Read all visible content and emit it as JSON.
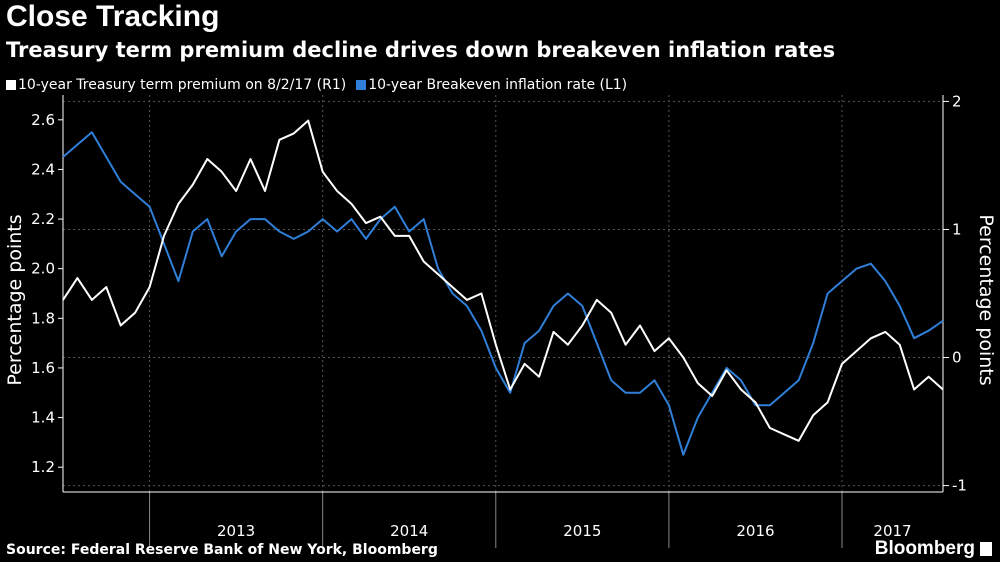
{
  "title": "Close Tracking",
  "subtitle": "Treasury term premium decline drives down breakeven inflation rates",
  "source": "Source: Federal Reserve Bank of New York, Bloomberg",
  "brand": "Bloomberg",
  "colors": {
    "term_premium": "#ffffff",
    "breakeven": "#2f7fd8",
    "grid": "#555555",
    "background": "#000000"
  },
  "chart_data": {
    "type": "line",
    "x_axis": {
      "labels": [
        "2013",
        "2014",
        "2015",
        "2016",
        "2017"
      ],
      "range": [
        "2012-07",
        "2017-08"
      ]
    },
    "left_axis": {
      "label": "Percentage points",
      "ticks": [
        "1.2",
        "1.4",
        "1.6",
        "1.8",
        "2.0",
        "2.2",
        "2.4",
        "2.6"
      ],
      "range": [
        1.1,
        2.7
      ]
    },
    "right_axis": {
      "label": "Percentage points",
      "ticks": [
        "-1",
        "0",
        "1",
        "2"
      ],
      "range": [
        -1.05,
        2.05
      ]
    },
    "grid": true,
    "legend_position": "top-left",
    "series": [
      {
        "name": "10-year Treasury term premium on 8/2/17 (R1)",
        "axis": "right",
        "points": [
          [
            "2012-07",
            0.45
          ],
          [
            "2012-08",
            0.62
          ],
          [
            "2012-09",
            0.45
          ],
          [
            "2012-10",
            0.55
          ],
          [
            "2012-11",
            0.25
          ],
          [
            "2012-12",
            0.35
          ],
          [
            "2013-01",
            0.55
          ],
          [
            "2013-02",
            0.95
          ],
          [
            "2013-03",
            1.2
          ],
          [
            "2013-04",
            1.35
          ],
          [
            "2013-05",
            1.55
          ],
          [
            "2013-06",
            1.45
          ],
          [
            "2013-07",
            1.3
          ],
          [
            "2013-08",
            1.55
          ],
          [
            "2013-09",
            1.3
          ],
          [
            "2013-10",
            1.7
          ],
          [
            "2013-11",
            1.75
          ],
          [
            "2013-12",
            1.85
          ],
          [
            "2014-01",
            1.45
          ],
          [
            "2014-02",
            1.3
          ],
          [
            "2014-03",
            1.2
          ],
          [
            "2014-04",
            1.05
          ],
          [
            "2014-05",
            1.1
          ],
          [
            "2014-06",
            0.95
          ],
          [
            "2014-07",
            0.95
          ],
          [
            "2014-08",
            0.75
          ],
          [
            "2014-09",
            0.65
          ],
          [
            "2014-10",
            0.55
          ],
          [
            "2014-11",
            0.45
          ],
          [
            "2014-12",
            0.5
          ],
          [
            "2015-01",
            0.1
          ],
          [
            "2015-02",
            -0.25
          ],
          [
            "2015-03",
            -0.05
          ],
          [
            "2015-04",
            -0.15
          ],
          [
            "2015-05",
            0.2
          ],
          [
            "2015-06",
            0.1
          ],
          [
            "2015-07",
            0.25
          ],
          [
            "2015-08",
            0.45
          ],
          [
            "2015-09",
            0.35
          ],
          [
            "2015-10",
            0.1
          ],
          [
            "2015-11",
            0.25
          ],
          [
            "2015-12",
            0.05
          ],
          [
            "2016-01",
            0.15
          ],
          [
            "2016-02",
            0.0
          ],
          [
            "2016-03",
            -0.2
          ],
          [
            "2016-04",
            -0.3
          ],
          [
            "2016-05",
            -0.1
          ],
          [
            "2016-06",
            -0.25
          ],
          [
            "2016-07",
            -0.35
          ],
          [
            "2016-08",
            -0.55
          ],
          [
            "2016-09",
            -0.6
          ],
          [
            "2016-10",
            -0.65
          ],
          [
            "2016-11",
            -0.45
          ],
          [
            "2016-12",
            -0.35
          ],
          [
            "2017-01",
            -0.05
          ],
          [
            "2017-02",
            0.05
          ],
          [
            "2017-03",
            0.15
          ],
          [
            "2017-04",
            0.2
          ],
          [
            "2017-05",
            0.1
          ],
          [
            "2017-06",
            -0.25
          ],
          [
            "2017-07",
            -0.15
          ],
          [
            "2017-08",
            -0.25
          ]
        ]
      },
      {
        "name": "10-year Breakeven inflation rate (L1)",
        "axis": "left",
        "points": [
          [
            "2012-07",
            2.45
          ],
          [
            "2012-08",
            2.5
          ],
          [
            "2012-09",
            2.55
          ],
          [
            "2012-10",
            2.45
          ],
          [
            "2012-11",
            2.35
          ],
          [
            "2012-12",
            2.3
          ],
          [
            "2013-01",
            2.25
          ],
          [
            "2013-02",
            2.1
          ],
          [
            "2013-03",
            1.95
          ],
          [
            "2013-04",
            2.15
          ],
          [
            "2013-05",
            2.2
          ],
          [
            "2013-06",
            2.05
          ],
          [
            "2013-07",
            2.15
          ],
          [
            "2013-08",
            2.2
          ],
          [
            "2013-09",
            2.2
          ],
          [
            "2013-10",
            2.15
          ],
          [
            "2013-11",
            2.12
          ],
          [
            "2013-12",
            2.15
          ],
          [
            "2014-01",
            2.2
          ],
          [
            "2014-02",
            2.15
          ],
          [
            "2014-03",
            2.2
          ],
          [
            "2014-04",
            2.12
          ],
          [
            "2014-05",
            2.2
          ],
          [
            "2014-06",
            2.25
          ],
          [
            "2014-07",
            2.15
          ],
          [
            "2014-08",
            2.2
          ],
          [
            "2014-09",
            2.0
          ],
          [
            "2014-10",
            1.9
          ],
          [
            "2014-11",
            1.85
          ],
          [
            "2014-12",
            1.75
          ],
          [
            "2015-01",
            1.6
          ],
          [
            "2015-02",
            1.5
          ],
          [
            "2015-03",
            1.7
          ],
          [
            "2015-04",
            1.75
          ],
          [
            "2015-05",
            1.85
          ],
          [
            "2015-06",
            1.9
          ],
          [
            "2015-07",
            1.85
          ],
          [
            "2015-08",
            1.7
          ],
          [
            "2015-09",
            1.55
          ],
          [
            "2015-10",
            1.5
          ],
          [
            "2015-11",
            1.5
          ],
          [
            "2015-12",
            1.55
          ],
          [
            "2016-01",
            1.45
          ],
          [
            "2016-02",
            1.25
          ],
          [
            "2016-03",
            1.4
          ],
          [
            "2016-04",
            1.5
          ],
          [
            "2016-05",
            1.6
          ],
          [
            "2016-06",
            1.55
          ],
          [
            "2016-07",
            1.45
          ],
          [
            "2016-08",
            1.45
          ],
          [
            "2016-09",
            1.5
          ],
          [
            "2016-10",
            1.55
          ],
          [
            "2016-11",
            1.7
          ],
          [
            "2016-12",
            1.9
          ],
          [
            "2017-01",
            1.95
          ],
          [
            "2017-02",
            2.0
          ],
          [
            "2017-03",
            2.02
          ],
          [
            "2017-04",
            1.95
          ],
          [
            "2017-05",
            1.85
          ],
          [
            "2017-06",
            1.72
          ],
          [
            "2017-07",
            1.75
          ],
          [
            "2017-08",
            1.79
          ]
        ]
      }
    ]
  }
}
